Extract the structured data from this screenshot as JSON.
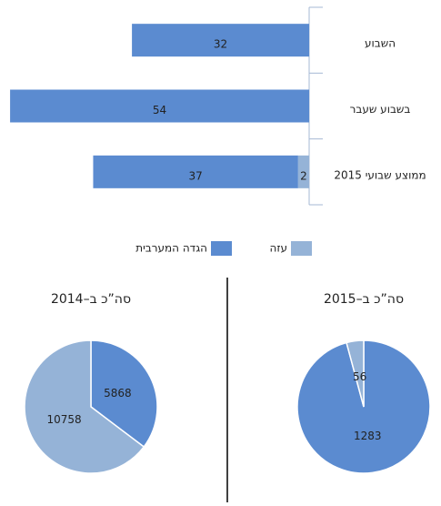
{
  "chart_data": [
    {
      "type": "bar",
      "horizontal": true,
      "categories": [
        "השבוע",
        "בשבוע שעבר",
        "ממוצע שבועי 2015"
      ],
      "series": [
        {
          "name": "עזה",
          "color": "#95b3d7",
          "values": [
            0,
            0,
            2
          ]
        },
        {
          "name": "הגדה המערבית",
          "color": "#5b8bd0",
          "values": [
            32,
            54,
            37
          ]
        }
      ],
      "xlim": [
        0,
        55
      ]
    },
    {
      "type": "pie",
      "title": "סה”כ ב–2014",
      "values": [
        5868,
        10758
      ],
      "colors": [
        "#5b8bd0",
        "#95b3d7"
      ]
    },
    {
      "type": "pie",
      "title": "סה”כ ב–2015",
      "values": [
        1283,
        56
      ],
      "colors": [
        "#5b8bd0",
        "#95b3d7"
      ]
    }
  ]
}
